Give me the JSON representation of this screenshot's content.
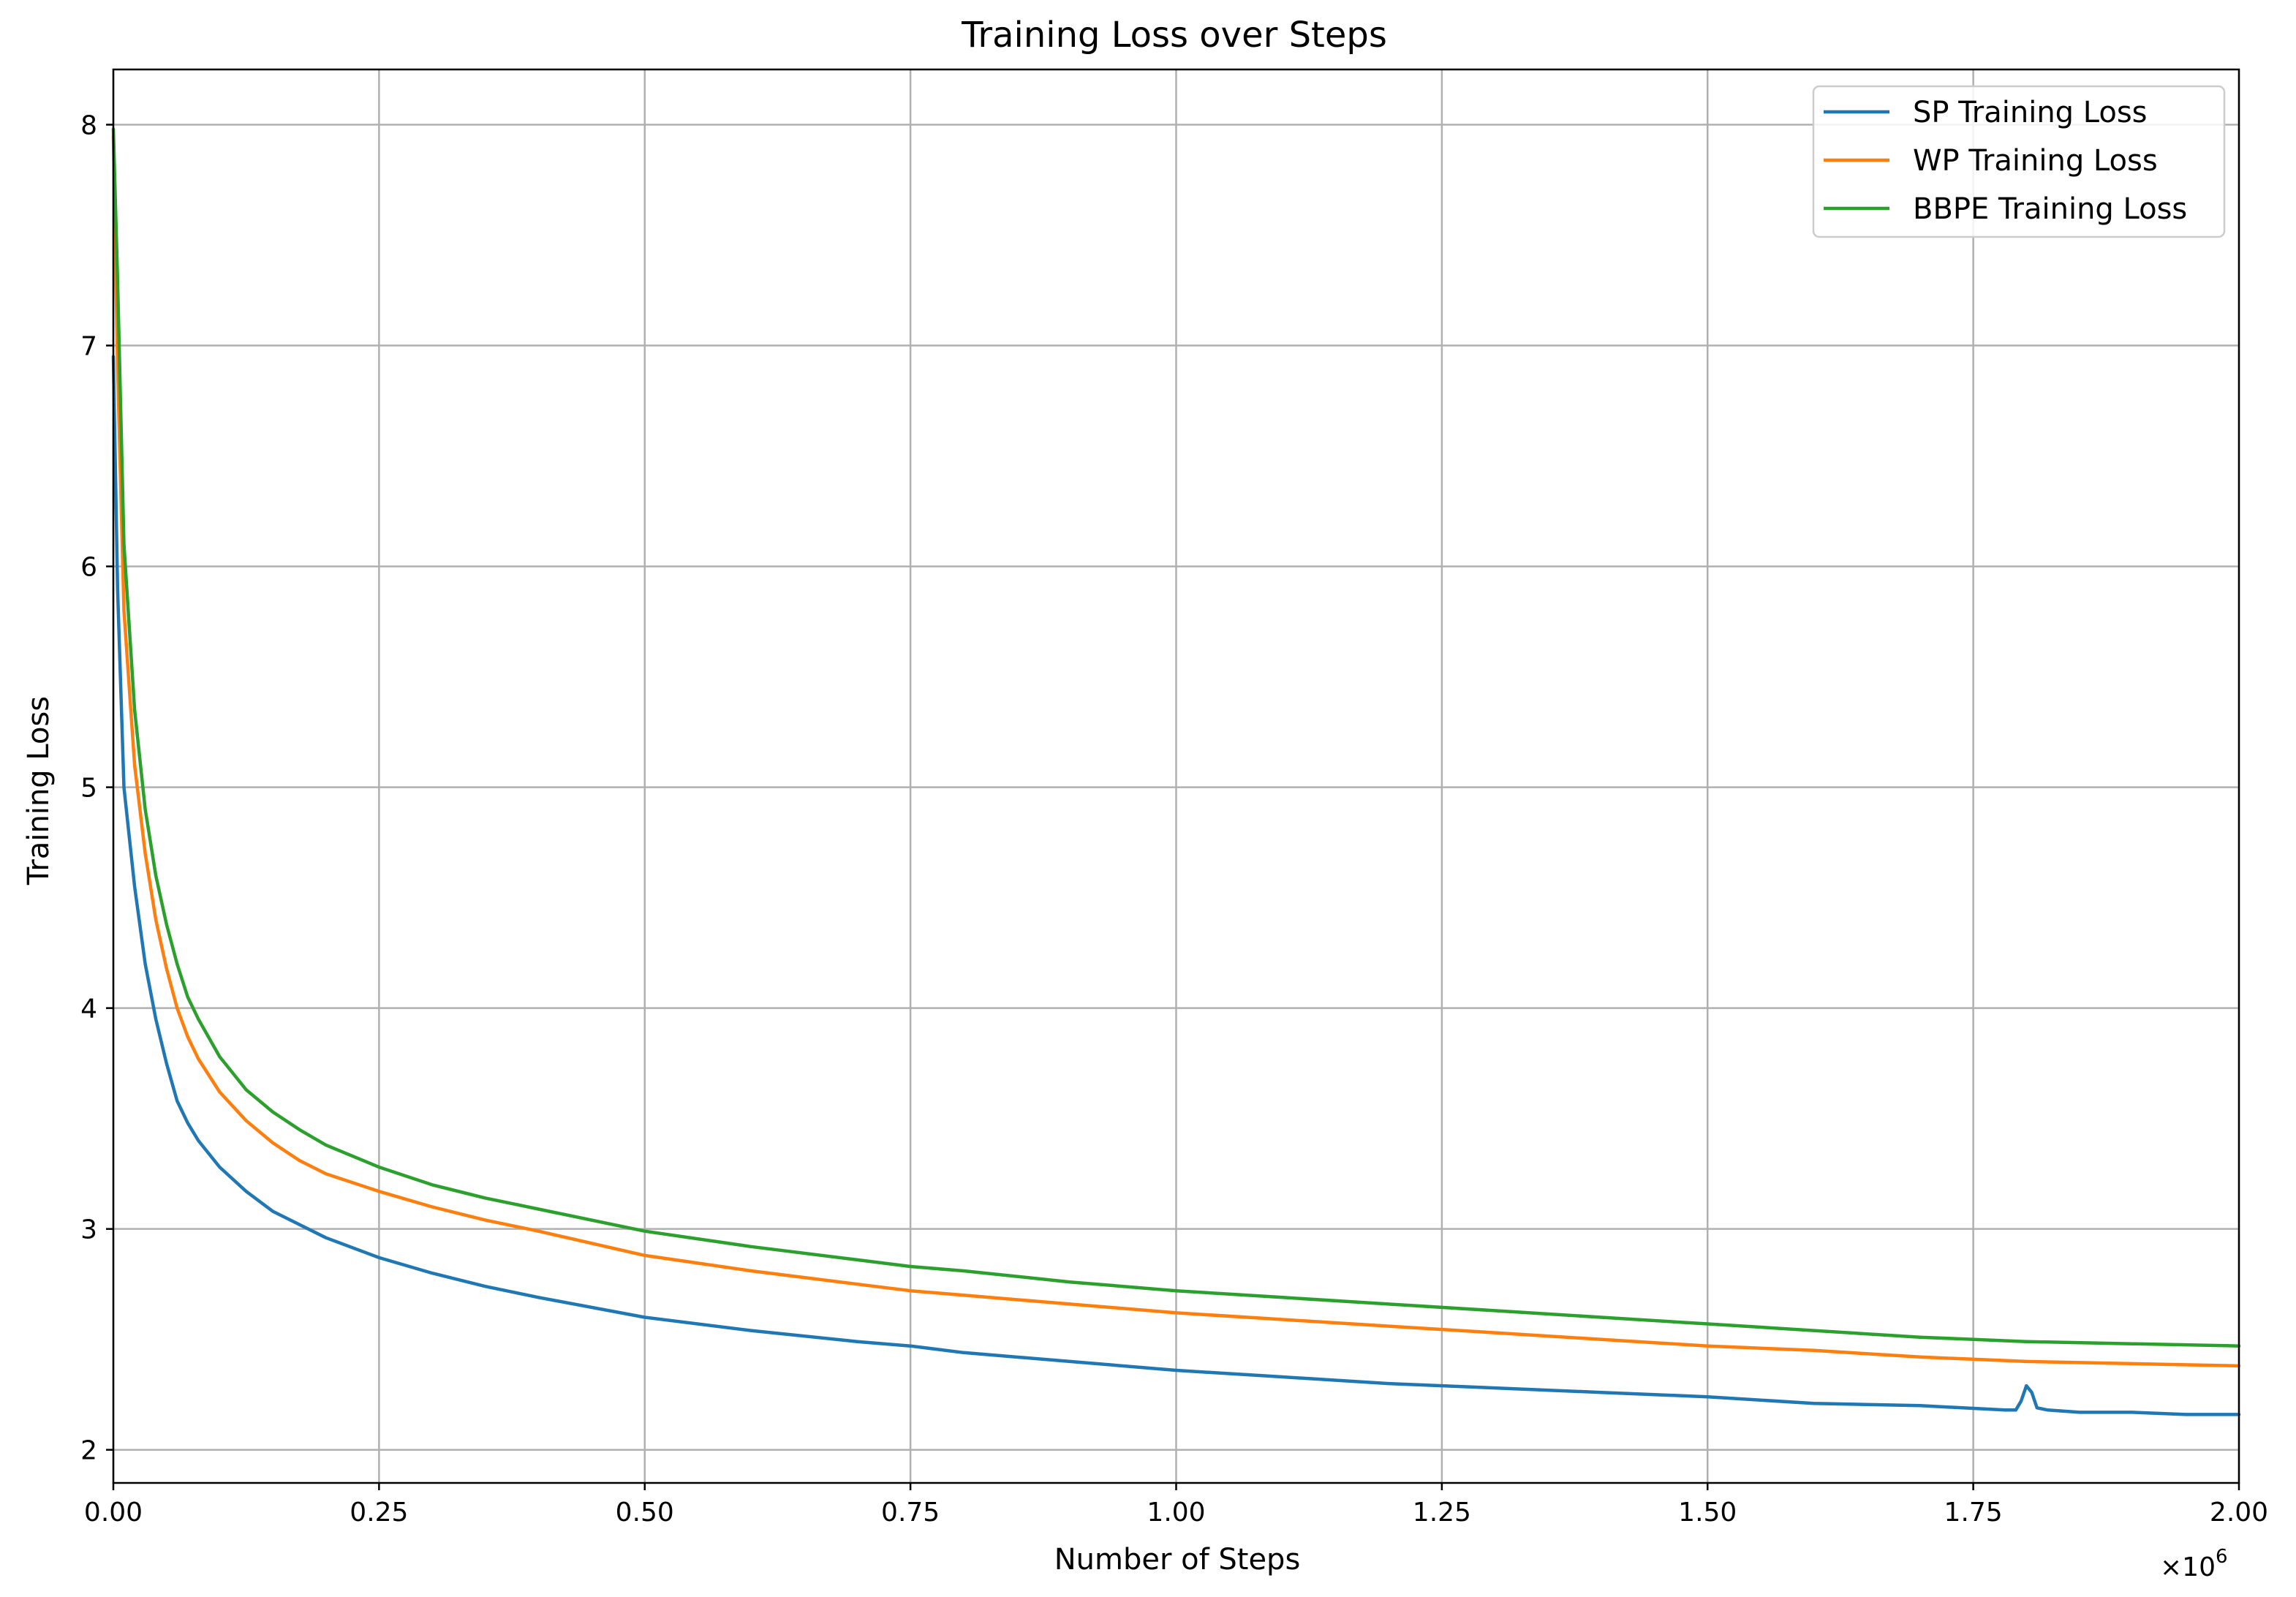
{
  "chart_data": {
    "type": "line",
    "title": "Training Loss over Steps",
    "xlabel": "Number of Steps",
    "ylabel": "Training Loss",
    "x_multiplier_label": "×10",
    "x_multiplier_exp": "6",
    "xlim": [
      0,
      2.0
    ],
    "ylim": [
      1.85,
      8.25
    ],
    "x_ticks": [
      0.0,
      0.25,
      0.5,
      0.75,
      1.0,
      1.25,
      1.5,
      1.75,
      2.0
    ],
    "x_tick_labels": [
      "0.00",
      "0.25",
      "0.50",
      "0.75",
      "1.00",
      "1.25",
      "1.50",
      "1.75",
      "2.00"
    ],
    "y_ticks": [
      2,
      3,
      4,
      5,
      6,
      7,
      8
    ],
    "y_tick_labels": [
      "2",
      "3",
      "4",
      "5",
      "6",
      "7",
      "8"
    ],
    "grid": true,
    "legend_position": "top-right",
    "series": [
      {
        "name": "SP Training Loss",
        "color": "#1f77b4",
        "x": [
          0.0,
          0.004,
          0.01,
          0.02,
          0.03,
          0.04,
          0.05,
          0.06,
          0.07,
          0.08,
          0.1,
          0.125,
          0.15,
          0.175,
          0.2,
          0.25,
          0.3,
          0.35,
          0.4,
          0.5,
          0.6,
          0.7,
          0.75,
          0.8,
          0.9,
          1.0,
          1.1,
          1.2,
          1.3,
          1.4,
          1.5,
          1.6,
          1.7,
          1.78,
          1.79,
          1.795,
          1.8,
          1.805,
          1.81,
          1.82,
          1.85,
          1.9,
          1.95,
          2.0
        ],
        "y": [
          6.95,
          5.9,
          5.0,
          4.55,
          4.2,
          3.95,
          3.75,
          3.58,
          3.48,
          3.4,
          3.28,
          3.17,
          3.08,
          3.02,
          2.96,
          2.87,
          2.8,
          2.74,
          2.69,
          2.6,
          2.54,
          2.49,
          2.47,
          2.44,
          2.4,
          2.36,
          2.33,
          2.3,
          2.28,
          2.26,
          2.24,
          2.21,
          2.2,
          2.18,
          2.18,
          2.22,
          2.29,
          2.26,
          2.19,
          2.18,
          2.17,
          2.17,
          2.16,
          2.16
        ]
      },
      {
        "name": "WP Training Loss",
        "color": "#ff7f0e",
        "x": [
          0.0,
          0.004,
          0.01,
          0.02,
          0.03,
          0.04,
          0.05,
          0.06,
          0.07,
          0.08,
          0.1,
          0.125,
          0.15,
          0.175,
          0.2,
          0.25,
          0.3,
          0.35,
          0.4,
          0.5,
          0.6,
          0.7,
          0.75,
          0.8,
          0.9,
          1.0,
          1.1,
          1.2,
          1.3,
          1.4,
          1.5,
          1.6,
          1.7,
          1.8,
          1.9,
          2.0
        ],
        "y": [
          7.95,
          6.9,
          5.8,
          5.1,
          4.7,
          4.4,
          4.18,
          4.0,
          3.87,
          3.77,
          3.62,
          3.49,
          3.39,
          3.31,
          3.25,
          3.17,
          3.1,
          3.04,
          2.99,
          2.88,
          2.81,
          2.75,
          2.72,
          2.7,
          2.66,
          2.62,
          2.59,
          2.56,
          2.53,
          2.5,
          2.47,
          2.45,
          2.42,
          2.4,
          2.39,
          2.38
        ]
      },
      {
        "name": "BBPE Training Loss",
        "color": "#2ca02c",
        "x": [
          0.0,
          0.004,
          0.01,
          0.02,
          0.03,
          0.04,
          0.05,
          0.06,
          0.07,
          0.08,
          0.1,
          0.125,
          0.15,
          0.175,
          0.2,
          0.25,
          0.3,
          0.35,
          0.4,
          0.5,
          0.6,
          0.7,
          0.75,
          0.8,
          0.9,
          1.0,
          1.1,
          1.2,
          1.3,
          1.4,
          1.5,
          1.6,
          1.7,
          1.8,
          1.9,
          2.0
        ],
        "y": [
          7.98,
          7.3,
          6.1,
          5.35,
          4.9,
          4.6,
          4.38,
          4.2,
          4.05,
          3.95,
          3.78,
          3.63,
          3.53,
          3.45,
          3.38,
          3.28,
          3.2,
          3.14,
          3.09,
          2.99,
          2.92,
          2.86,
          2.83,
          2.81,
          2.76,
          2.72,
          2.69,
          2.66,
          2.63,
          2.6,
          2.57,
          2.54,
          2.51,
          2.49,
          2.48,
          2.47
        ]
      }
    ]
  }
}
